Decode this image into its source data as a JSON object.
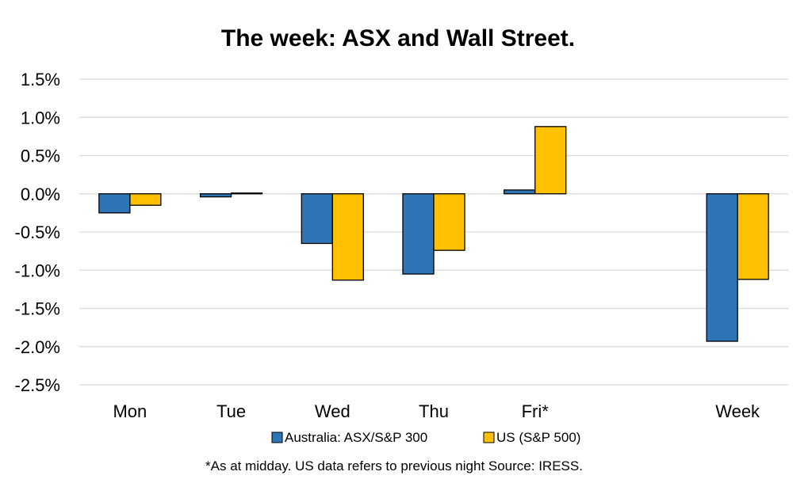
{
  "chart_data": {
    "type": "bar",
    "title": "The week:  ASX and Wall Street.",
    "categories": [
      "Mon",
      "Tue",
      "Wed",
      "Thu",
      "Fri*",
      "",
      "Week"
    ],
    "series": [
      {
        "name": "Australia: ASX/S&P 300",
        "color": "#2E75B6",
        "values": [
          -0.25,
          -0.04,
          -0.65,
          -1.05,
          0.05,
          null,
          -1.93
        ]
      },
      {
        "name": "US (S&P 500)",
        "color": "#FFC000",
        "values": [
          -0.15,
          0.01,
          -1.13,
          -0.74,
          0.88,
          null,
          -1.12
        ]
      }
    ],
    "ylim": [
      -2.5,
      1.5
    ],
    "yticks": [
      1.5,
      1.0,
      0.5,
      0.0,
      -0.5,
      -1.0,
      -1.5,
      -2.0,
      -2.5
    ],
    "ytick_labels": [
      "1.5%",
      "1.0%",
      "0.5%",
      "0.0%",
      "-0.5%",
      "-1.0%",
      "-1.5%",
      "-2.0%",
      "-2.5%"
    ],
    "grid": true,
    "legend_position": "bottom",
    "footnote": "*As at midday. US data refers to previous night  Source:  IRESS."
  }
}
